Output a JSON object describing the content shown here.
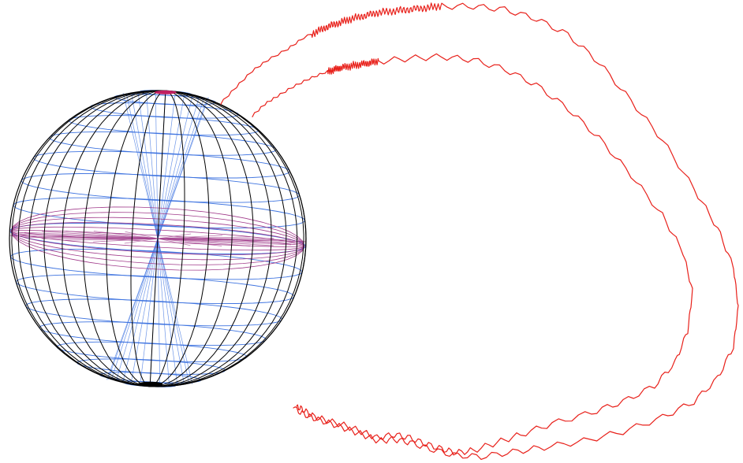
{
  "diagram": {
    "colors": {
      "background": "#ffffff",
      "meridian": "#000000",
      "parallel": "#3f74e0",
      "equator_band": "#a03a8a",
      "field_line": "#e8201a",
      "pole_marker": "#c02060"
    }
  }
}
